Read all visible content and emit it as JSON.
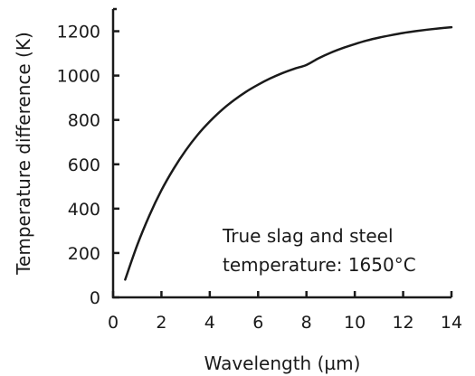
{
  "chart_data": {
    "type": "line",
    "title": "",
    "xlabel": "Wavelength (µm)",
    "ylabel": "Temperature difference (K)",
    "xlim": [
      0,
      14
    ],
    "ylim": [
      0,
      1300
    ],
    "x_ticks": [
      0,
      2,
      4,
      6,
      8,
      10,
      12,
      14
    ],
    "y_ticks": [
      0,
      200,
      400,
      600,
      800,
      1000,
      1200
    ],
    "grid": false,
    "legend": "none",
    "annotation": [
      "True slag and steel",
      "temperature: 1650°C"
    ],
    "series": [
      {
        "color": "#1a1a1a",
        "x": [
          0.5,
          1,
          1.5,
          2,
          2.5,
          3,
          3.5,
          4,
          4.5,
          5,
          5.5,
          6,
          6.5,
          7,
          7.5,
          8,
          8.5,
          9,
          9.5,
          10,
          10.5,
          11,
          11.5,
          12,
          12.5,
          13,
          13.5,
          14
        ],
        "y": [
          80,
          236,
          369,
          483,
          579,
          662,
          733,
          793,
          845,
          889,
          927,
          959,
          987,
          1011,
          1031,
          1048,
          1078,
          1103,
          1124,
          1142,
          1158,
          1171,
          1182,
          1192,
          1200,
          1207,
          1213,
          1218
        ]
      }
    ]
  }
}
